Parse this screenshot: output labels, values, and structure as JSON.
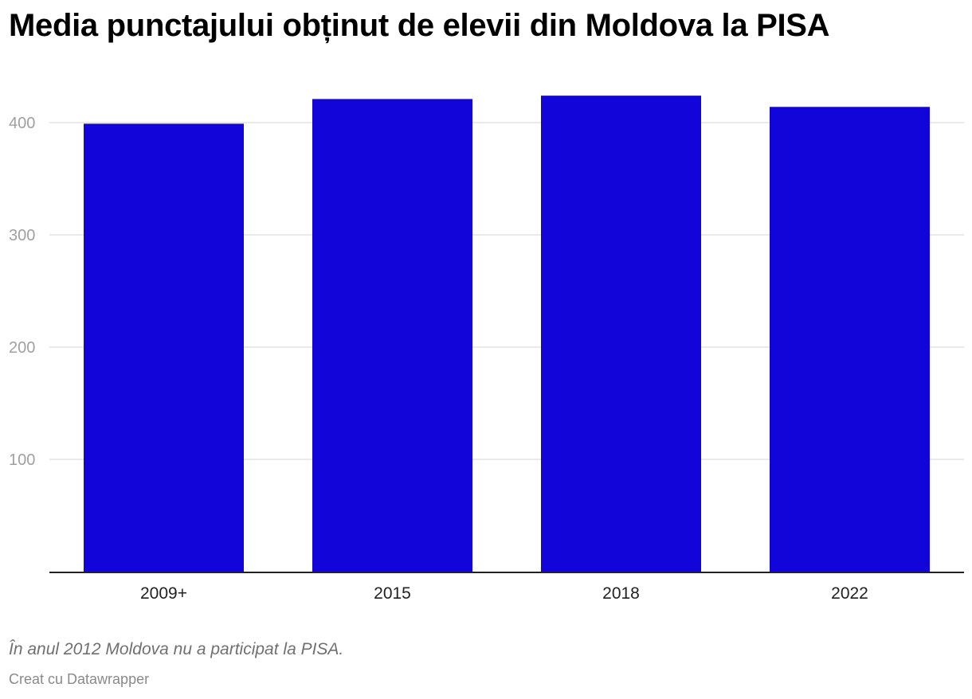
{
  "chart_data": {
    "type": "bar",
    "title": "Media punctajului obținut de elevii din Moldova la PISA",
    "categories": [
      "2009+",
      "2015",
      "2018",
      "2022"
    ],
    "values": [
      399,
      421,
      424,
      414
    ],
    "yticks": [
      100,
      200,
      300,
      400
    ],
    "ylim": [
      0,
      450
    ],
    "xlabel": "",
    "ylabel": "",
    "grid": true,
    "bar_color": "#1205d9"
  },
  "notes": "În anul 2012 Moldova nu a participat la PISA.",
  "credit": "Creat cu Datawrapper"
}
